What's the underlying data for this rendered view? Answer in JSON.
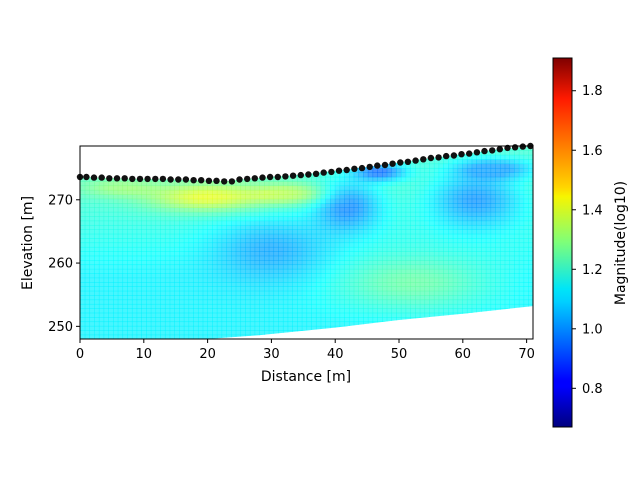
{
  "chart_data": {
    "type": "heatmap",
    "title": "",
    "xlabel": "Distance [m]",
    "ylabel": "Elevation [m]",
    "xlim": [
      0,
      71
    ],
    "ylim": [
      248,
      278.5
    ],
    "xticks": [
      "0",
      "10",
      "20",
      "30",
      "40",
      "50",
      "60",
      "70"
    ],
    "xtick_values": [
      0,
      10,
      20,
      30,
      40,
      50,
      60,
      70
    ],
    "yticks": [
      "250",
      "260",
      "270"
    ],
    "ytick_values": [
      250,
      260,
      270
    ],
    "grid": false,
    "colormap": "jet",
    "colorbar": {
      "label": "Magnitude(log10)",
      "range": [
        0.67,
        1.91
      ],
      "ticks": [
        "0.8",
        "1.0",
        "1.2",
        "1.4",
        "1.6",
        "1.8"
      ],
      "tick_values": [
        0.8,
        1.0,
        1.2,
        1.4,
        1.6,
        1.8
      ]
    },
    "surface_profile": {
      "x": [
        0,
        5,
        10,
        15,
        20,
        23,
        25,
        30,
        35,
        40,
        45,
        50,
        55,
        60,
        65,
        71
      ],
      "y": [
        273.6,
        273.4,
        273.3,
        273.2,
        273.0,
        272.9,
        273.2,
        273.6,
        274.0,
        274.6,
        275.2,
        275.9,
        276.6,
        277.2,
        277.9,
        278.5
      ]
    },
    "bottom_boundary": {
      "x": [
        0,
        20,
        28,
        40,
        50,
        60,
        71
      ],
      "y": [
        248.0,
        248.0,
        248.6,
        249.8,
        251.0,
        252.0,
        253.2
      ]
    },
    "electrodes": {
      "x": [
        0,
        1,
        2.2,
        3.4,
        4.6,
        5.8,
        7,
        8.2,
        9.4,
        10.6,
        11.8,
        13,
        14.2,
        15.4,
        16.6,
        17.8,
        19,
        20.2,
        21.4,
        22.6,
        23.8,
        25,
        26.2,
        27.4,
        28.6,
        29.8,
        31,
        32.2,
        33.4,
        34.6,
        35.8,
        37,
        38.2,
        39.4,
        40.6,
        41.8,
        43,
        44.2,
        45.4,
        46.6,
        47.8,
        49,
        50.2,
        51.4,
        52.6,
        53.8,
        55,
        56.2,
        57.4,
        58.6,
        59.8,
        61,
        62.2,
        63.4,
        64.6,
        65.8,
        67,
        68.2,
        69.4,
        70.6
      ],
      "y": [
        273.6,
        273.6,
        273.5,
        273.5,
        273.4,
        273.4,
        273.4,
        273.3,
        273.3,
        273.3,
        273.3,
        273.3,
        273.2,
        273.2,
        273.2,
        273.1,
        273.1,
        273.0,
        273.0,
        272.9,
        272.9,
        273.2,
        273.3,
        273.4,
        273.5,
        273.6,
        273.6,
        273.7,
        273.8,
        273.9,
        274.0,
        274.1,
        274.3,
        274.4,
        274.6,
        274.7,
        274.9,
        275.0,
        275.2,
        275.4,
        275.5,
        275.7,
        275.9,
        276.0,
        276.2,
        276.4,
        276.6,
        276.7,
        276.9,
        277.0,
        277.2,
        277.3,
        277.5,
        277.7,
        277.8,
        278.0,
        278.2,
        278.3,
        278.4,
        278.5
      ]
    },
    "anomalies": [
      {
        "x": 20,
        "y": 270.5,
        "sx": 9,
        "sy": 2.2,
        "value": 1.42
      },
      {
        "x": 33,
        "y": 271.0,
        "sx": 6,
        "sy": 1.6,
        "value": 1.36
      },
      {
        "x": 6,
        "y": 272.0,
        "sx": 6,
        "sy": 1.5,
        "value": 1.3
      },
      {
        "x": 42,
        "y": 269.0,
        "sx": 5,
        "sy": 4.0,
        "value": 0.98
      },
      {
        "x": 30,
        "y": 262.0,
        "sx": 9,
        "sy": 5.0,
        "value": 1.02
      },
      {
        "x": 47,
        "y": 274.5,
        "sx": 4,
        "sy": 1.4,
        "value": 0.95
      },
      {
        "x": 62,
        "y": 270.0,
        "sx": 7,
        "sy": 4.5,
        "value": 1.0
      },
      {
        "x": 65,
        "y": 275.0,
        "sx": 6,
        "sy": 1.6,
        "value": 1.02
      },
      {
        "x": 52,
        "y": 257.0,
        "sx": 12,
        "sy": 4.5,
        "value": 1.25
      },
      {
        "x": 8,
        "y": 253.0,
        "sx": 10,
        "sy": 4.0,
        "value": 1.12
      }
    ],
    "background_value": 1.12
  }
}
